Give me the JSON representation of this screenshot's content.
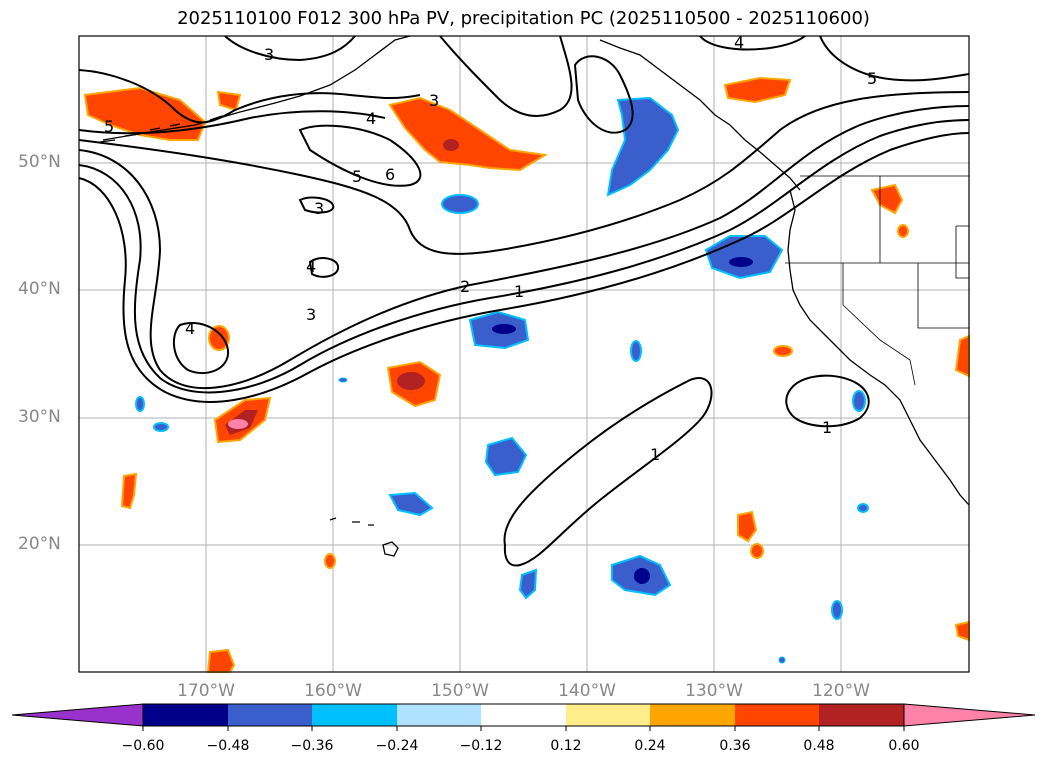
{
  "title": "2025110100 F012 300 hPa PV, precipitation PC (2025110500 - 2025110600)",
  "lat_labels": [
    "50°N",
    "40°N",
    "30°N",
    "20°N"
  ],
  "lon_labels": [
    "170°W",
    "160°W",
    "150°W",
    "140°W",
    "130°W",
    "120°W"
  ],
  "colorbar": {
    "ticks": [
      "−0.60",
      "−0.48",
      "−0.36",
      "−0.24",
      "−0.12",
      "0.12",
      "0.24",
      "0.36",
      "0.48",
      "0.60"
    ],
    "colors": [
      "#9932CC",
      "#00008B",
      "#3A5FCD",
      "#00BFFF",
      "#B0E2FF",
      "#FFFFFF",
      "#FFEC8B",
      "#FFA500",
      "#FF4500",
      "#B22222",
      "#FF82AB"
    ]
  },
  "contour_labels": [
    "3",
    "4",
    "5",
    "5",
    "4",
    "3",
    "5",
    "6",
    "3",
    "4",
    "4",
    "3",
    "2",
    "1",
    "1",
    "1"
  ],
  "colors": {
    "grid": "#b0b0b0",
    "coast": "#000000",
    "pv_contour": "#000000"
  }
}
